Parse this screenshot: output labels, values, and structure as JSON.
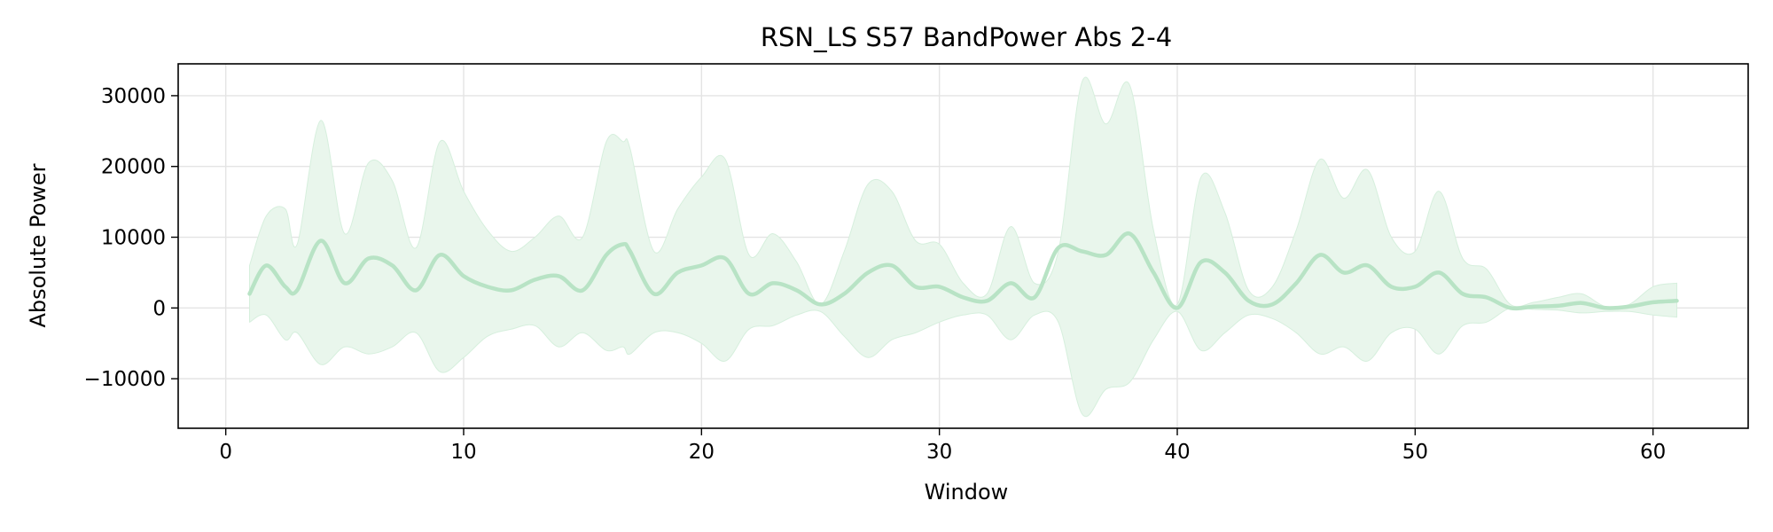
{
  "chart_data": {
    "type": "line",
    "title": "RSN_LS S57 BandPower Abs 2-4",
    "xlabel": "Window",
    "ylabel": "Absolute Power",
    "xlim": [
      -2,
      64
    ],
    "ylim": [
      -17000,
      34500
    ],
    "xticks": [
      0,
      10,
      20,
      30,
      40,
      50,
      60
    ],
    "yticks": [
      -10000,
      0,
      10000,
      20000,
      30000
    ],
    "ytick_labels": [
      "−10000",
      "0",
      "10000",
      "20000",
      "30000"
    ],
    "grid": true,
    "line_color": "#b8e3c5",
    "band_color": "#e9f6ec",
    "series": [
      {
        "x": [
          1,
          1.7,
          2.5,
          3,
          4,
          5,
          6,
          7,
          8,
          9,
          10,
          11,
          12,
          13,
          14,
          15,
          16,
          16.7,
          17,
          18,
          19,
          20,
          21,
          22,
          23,
          24,
          25,
          26,
          27,
          28,
          29,
          30,
          31,
          32,
          33,
          34,
          35,
          36,
          37,
          38,
          39,
          40,
          41,
          42,
          43,
          44,
          45,
          46,
          47,
          48,
          49,
          50,
          51,
          52,
          53,
          54,
          55,
          56,
          57,
          58,
          59,
          60,
          61
        ],
        "y": [
          2000,
          6000,
          3000,
          2500,
          9500,
          3500,
          7000,
          6000,
          2500,
          7500,
          4500,
          3000,
          2500,
          4000,
          4500,
          2500,
          7500,
          9000,
          8000,
          2000,
          5000,
          6000,
          7000,
          2000,
          3500,
          2500,
          500,
          2000,
          5000,
          6000,
          3000,
          3000,
          1500,
          1000,
          3500,
          1500,
          8500,
          8000,
          7500,
          10500,
          5000,
          0,
          6500,
          5000,
          1000,
          500,
          3500,
          7500,
          5000,
          6000,
          3000,
          3000,
          5000,
          2000,
          1500,
          0,
          200,
          300,
          700,
          0,
          200,
          800,
          1000
        ],
        "upper": [
          6000,
          13000,
          14000,
          9000,
          26500,
          10500,
          20500,
          18000,
          8500,
          23500,
          16500,
          11000,
          8000,
          10000,
          13000,
          10000,
          23500,
          23500,
          22500,
          8000,
          14000,
          18500,
          21000,
          7500,
          10500,
          6500,
          500,
          8000,
          17500,
          16500,
          9500,
          9000,
          3500,
          2000,
          11500,
          3500,
          8000,
          32000,
          26000,
          31500,
          11000,
          500,
          18500,
          13500,
          2500,
          3000,
          11000,
          21000,
          15500,
          19500,
          10000,
          8000,
          16500,
          7000,
          5500,
          500,
          800,
          1500,
          2000,
          200,
          500,
          3000,
          3500
        ],
        "lower": [
          -2000,
          -1000,
          -4500,
          -3500,
          -8000,
          -5500,
          -6500,
          -5500,
          -3500,
          -9000,
          -7000,
          -4000,
          -3000,
          -2500,
          -5500,
          -3500,
          -6000,
          -5500,
          -6500,
          -3500,
          -3500,
          -5000,
          -7500,
          -3000,
          -2500,
          -1000,
          -500,
          -4000,
          -7000,
          -4500,
          -3500,
          -2000,
          -1000,
          -1000,
          -4500,
          -1000,
          -2000,
          -15000,
          -11500,
          -10500,
          -4500,
          -500,
          -6000,
          -3500,
          -1000,
          -1500,
          -3500,
          -6500,
          -5500,
          -7500,
          -3500,
          -3000,
          -6500,
          -2500,
          -2000,
          0,
          -200,
          -300,
          -700,
          -500,
          -500,
          -1000,
          -1300
        ]
      }
    ]
  }
}
